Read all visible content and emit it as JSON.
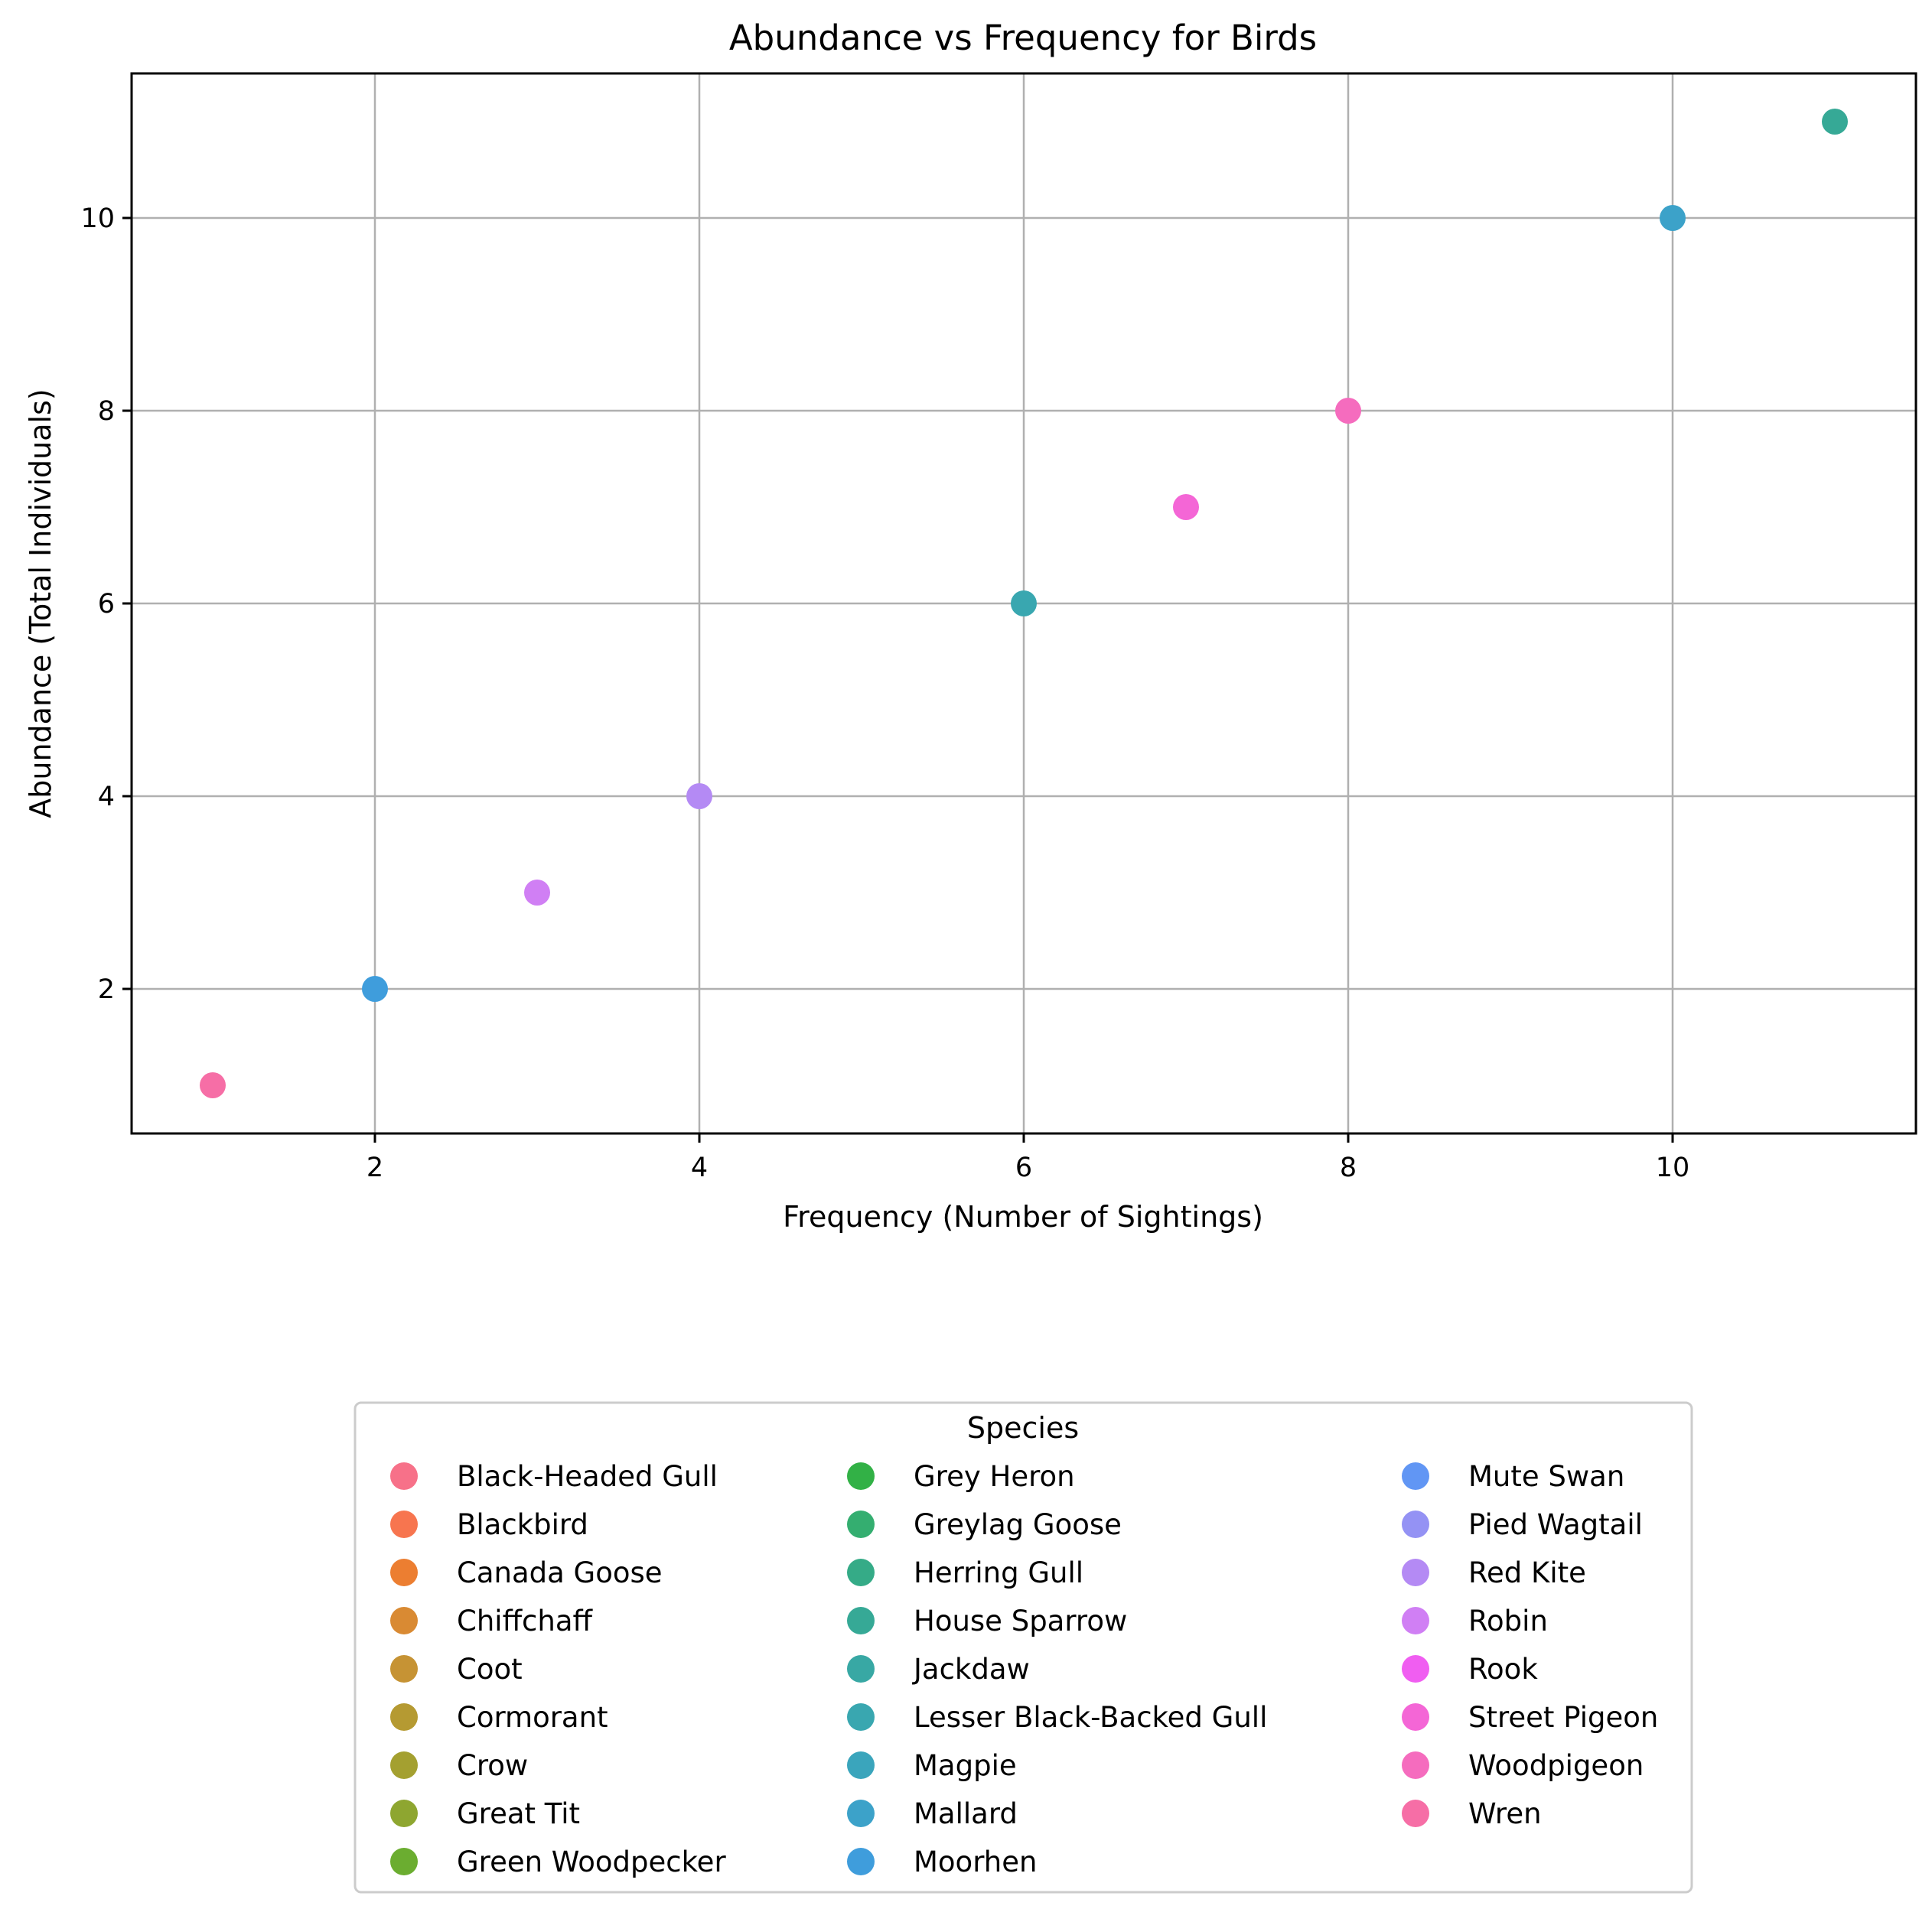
{
  "chart_data": {
    "type": "scatter",
    "title": "Abundance vs Frequency for Birds",
    "xlabel": "Frequency (Number of Sightings)",
    "ylabel": "Abundance (Total Individuals)",
    "xlim": [
      0.5,
      11.5
    ],
    "ylim": [
      0.5,
      11.5
    ],
    "xticks": [
      2,
      4,
      6,
      8,
      10
    ],
    "yticks": [
      2,
      4,
      6,
      8,
      10
    ],
    "grid": true,
    "legend": {
      "title": "Species",
      "placement": "bottom-center",
      "columns": 3,
      "entries": [
        {
          "name": "Black-Headed Gull",
          "color": "#f77189"
        },
        {
          "name": "Blackbird",
          "color": "#f7754f"
        },
        {
          "name": "Canada Goose",
          "color": "#ec7e31"
        },
        {
          "name": "Chiffchaff",
          "color": "#d98a33"
        },
        {
          "name": "Coot",
          "color": "#c69334"
        },
        {
          "name": "Cormorant",
          "color": "#b59a32"
        },
        {
          "name": "Crow",
          "color": "#a4a030"
        },
        {
          "name": "Great Tit",
          "color": "#8ea630"
        },
        {
          "name": "Green Woodpecker",
          "color": "#6bad30"
        },
        {
          "name": "Grey Heron",
          "color": "#32b146"
        },
        {
          "name": "Greylag Goose",
          "color": "#34ae70"
        },
        {
          "name": "Herring Gull",
          "color": "#35ab87"
        },
        {
          "name": "House Sparrow",
          "color": "#36a996"
        },
        {
          "name": "Jackdaw",
          "color": "#38a8a4"
        },
        {
          "name": "Lesser Black-Backed Gull",
          "color": "#39a7b0"
        },
        {
          "name": "Magpie",
          "color": "#3aa5bc"
        },
        {
          "name": "Mallard",
          "color": "#3ca2c9"
        },
        {
          "name": "Moorhen",
          "color": "#3f9ddc"
        },
        {
          "name": "Mute Swan",
          "color": "#6196f4"
        },
        {
          "name": "Pied Wagtail",
          "color": "#9492f4"
        },
        {
          "name": "Red Kite",
          "color": "#b48af4"
        },
        {
          "name": "Robin",
          "color": "#d07ff4"
        },
        {
          "name": "Rook",
          "color": "#f05ef1"
        },
        {
          "name": "Street Pigeon",
          "color": "#f466d6"
        },
        {
          "name": "Woodpigeon",
          "color": "#f56cbe"
        },
        {
          "name": "Wren",
          "color": "#f66ea6"
        }
      ]
    },
    "points": [
      {
        "x": 1,
        "y": 1,
        "color": "#f66ea6"
      },
      {
        "x": 2,
        "y": 2,
        "color": "#3f9ddc"
      },
      {
        "x": 3,
        "y": 3,
        "color": "#d07ff4"
      },
      {
        "x": 4,
        "y": 4,
        "color": "#b48af4"
      },
      {
        "x": 6,
        "y": 6,
        "color": "#39a7b0"
      },
      {
        "x": 7,
        "y": 7,
        "color": "#f466d6"
      },
      {
        "x": 8,
        "y": 8,
        "color": "#f56cbe"
      },
      {
        "x": 10,
        "y": 10,
        "color": "#3ca2c9"
      },
      {
        "x": 11,
        "y": 11,
        "color": "#36a996"
      }
    ]
  }
}
